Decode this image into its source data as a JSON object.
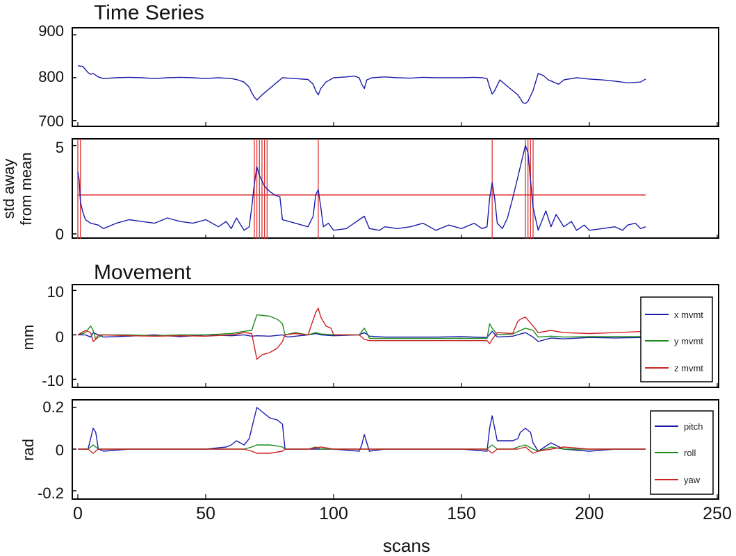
{
  "chart_data": [
    {
      "panel": "time-series",
      "type": "line",
      "title": "Time Series",
      "ylabel": "",
      "ylim": [
        690,
        910
      ],
      "yticks": [
        700,
        800,
        900
      ],
      "xlim": [
        0,
        250
      ],
      "series": [
        {
          "color": "#1a1aaa",
          "x": [
            0,
            2,
            4,
            5,
            6,
            8,
            10,
            15,
            20,
            25,
            30,
            35,
            40,
            45,
            50,
            55,
            60,
            62,
            65,
            67,
            68,
            69,
            70,
            72,
            74,
            76,
            78,
            80,
            85,
            90,
            92,
            93,
            94,
            95,
            97,
            100,
            105,
            108,
            110,
            111,
            112,
            113,
            115,
            120,
            125,
            130,
            135,
            140,
            145,
            150,
            155,
            158,
            160,
            161,
            162,
            163,
            165,
            168,
            170,
            172,
            173,
            174,
            175,
            176,
            178,
            180,
            182,
            184,
            186,
            188,
            190,
            195,
            200,
            205,
            210,
            215,
            220,
            222
          ],
          "y": [
            828,
            826,
            812,
            808,
            810,
            802,
            798,
            800,
            801,
            800,
            798,
            800,
            801,
            800,
            798,
            800,
            798,
            796,
            790,
            778,
            765,
            755,
            748,
            760,
            770,
            780,
            790,
            800,
            798,
            796,
            785,
            770,
            760,
            775,
            790,
            800,
            802,
            804,
            800,
            785,
            775,
            795,
            800,
            802,
            800,
            799,
            801,
            800,
            800,
            800,
            801,
            800,
            798,
            778,
            762,
            770,
            795,
            780,
            770,
            760,
            752,
            742,
            740,
            745,
            770,
            810,
            805,
            795,
            790,
            785,
            795,
            800,
            797,
            795,
            792,
            788,
            790,
            797
          ]
        }
      ]
    },
    {
      "panel": "std-away-from-mean",
      "type": "line",
      "title": "",
      "ylabel": "std away\nfrom mean",
      "ylim": [
        -0.2,
        5.3
      ],
      "yticks": [
        0,
        5
      ],
      "xlim": [
        0,
        250
      ],
      "threshold": 2.2,
      "highlight_scans": [
        0,
        1,
        69,
        70,
        71,
        72,
        73,
        74,
        94,
        162,
        175,
        176,
        177,
        178
      ],
      "series": [
        {
          "color": "#1a1aaa",
          "x": [
            0,
            0.5,
            1,
            2,
            3,
            5,
            8,
            10,
            15,
            20,
            25,
            30,
            35,
            40,
            45,
            50,
            55,
            58,
            60,
            62,
            65,
            67,
            68,
            69,
            70,
            71,
            72,
            73,
            75,
            77,
            79,
            80,
            85,
            90,
            92,
            93,
            94,
            95,
            96,
            98,
            100,
            105,
            110,
            112,
            114,
            118,
            120,
            125,
            130,
            135,
            140,
            145,
            150,
            155,
            158,
            160,
            161,
            162,
            163,
            164,
            166,
            168,
            170,
            172,
            174,
            175,
            176,
            177,
            178,
            180,
            183,
            185,
            187,
            190,
            193,
            195,
            198,
            200,
            205,
            210,
            213,
            215,
            218,
            220,
            222
          ],
          "y": [
            3.5,
            3.1,
            1.8,
            1.2,
            0.8,
            0.6,
            0.5,
            0.3,
            0.6,
            0.8,
            0.7,
            0.6,
            0.9,
            0.7,
            0.6,
            0.8,
            0.4,
            0.7,
            0.3,
            0.9,
            0.2,
            0.4,
            1.5,
            2.8,
            3.8,
            3.3,
            3.0,
            2.7,
            2.4,
            2.2,
            2.1,
            0.8,
            0.6,
            0.4,
            1.0,
            2.2,
            2.5,
            1.5,
            0.4,
            0.6,
            0.2,
            0.3,
            0.8,
            1.0,
            0.3,
            0.2,
            0.4,
            0.3,
            0.4,
            0.6,
            0.2,
            0.5,
            0.3,
            0.6,
            0.3,
            0.4,
            2.0,
            2.9,
            2.0,
            0.6,
            0.3,
            0.9,
            2.0,
            3.2,
            4.4,
            5.0,
            4.6,
            3.0,
            1.5,
            0.2,
            1.3,
            0.4,
            1.1,
            0.4,
            0.7,
            0.2,
            0.5,
            0.2,
            0.3,
            0.4,
            0.2,
            0.5,
            0.6,
            0.3,
            0.4
          ]
        }
      ]
    },
    {
      "panel": "movement-mm",
      "type": "line",
      "title": "Movement",
      "ylabel": "mm",
      "ylim": [
        -11.5,
        11
      ],
      "yticks": [
        -10,
        0,
        10
      ],
      "xlim": [
        0,
        250
      ],
      "legend": "right",
      "series": [
        {
          "name": "x mvmt",
          "color": "#1a1aaa",
          "x": [
            0,
            3,
            5,
            6,
            8,
            10,
            20,
            30,
            40,
            50,
            60,
            65,
            68,
            70,
            75,
            80,
            82,
            90,
            93,
            95,
            100,
            110,
            112,
            114,
            120,
            140,
            150,
            160,
            162,
            164,
            170,
            175,
            178,
            180,
            185,
            190,
            200,
            210,
            222
          ],
          "y": [
            0,
            0,
            -0.5,
            0.5,
            0,
            -0.5,
            -0.3,
            0,
            -0.4,
            0,
            -0.2,
            0,
            -0.3,
            -0.2,
            -0.3,
            0,
            -0.5,
            0,
            0.3,
            0,
            -0.2,
            0,
            0.5,
            -0.3,
            -0.5,
            -0.5,
            -0.4,
            -0.6,
            0.8,
            -0.5,
            -0.3,
            0.5,
            -0.5,
            -1.5,
            -0.7,
            -0.9,
            -0.6,
            -0.7,
            -0.6
          ]
        },
        {
          "name": "y mvmt",
          "color": "#1a8a1a",
          "x": [
            0,
            3,
            5,
            6,
            7,
            8,
            10,
            20,
            30,
            40,
            50,
            60,
            65,
            68,
            70,
            75,
            78,
            80,
            81,
            85,
            90,
            93,
            95,
            100,
            110,
            112,
            113,
            114,
            120,
            140,
            160,
            161,
            162,
            164,
            170,
            175,
            178,
            180,
            185,
            190,
            200,
            210,
            222
          ],
          "y": [
            0,
            0.5,
            2,
            1,
            -1,
            -0.5,
            0,
            0,
            -0.2,
            0,
            0,
            0.3,
            0.8,
            1,
            4.5,
            4.2,
            3.5,
            2.5,
            0,
            0.5,
            0,
            0.5,
            0.2,
            0,
            0,
            1.5,
            0.5,
            -0.8,
            -0.8,
            -0.8,
            -0.8,
            2.5,
            1.5,
            0,
            0.2,
            1.5,
            1,
            -0.5,
            -0.3,
            -0.5,
            -0.4,
            -0.4,
            -0.4
          ]
        },
        {
          "name": "z mvmt",
          "color": "#cc2222",
          "x": [
            0,
            3,
            5,
            6,
            7,
            8,
            10,
            20,
            30,
            40,
            50,
            60,
            65,
            68,
            70,
            72,
            75,
            78,
            80,
            81,
            85,
            90,
            93,
            94,
            95,
            97,
            99,
            100,
            110,
            112,
            114,
            120,
            140,
            160,
            161,
            162,
            164,
            170,
            172,
            173,
            175,
            178,
            180,
            185,
            190,
            200,
            210,
            222
          ],
          "y": [
            0,
            1,
            0.5,
            -1.5,
            -1,
            0,
            0,
            -0.2,
            -0.3,
            -0.2,
            -0.3,
            0,
            0.5,
            0.3,
            -5.5,
            -4.5,
            -4,
            -3,
            -1.5,
            0,
            0.3,
            0,
            5,
            6,
            4,
            2,
            1.5,
            0,
            0,
            -1,
            -1.3,
            -1.3,
            -1.3,
            -1.3,
            -2,
            -1,
            0.5,
            0.3,
            3,
            3.5,
            4,
            2,
            0.5,
            1,
            0.5,
            0.3,
            0.5,
            0.8
          ]
        }
      ]
    },
    {
      "panel": "movement-rad",
      "type": "line",
      "title": "",
      "ylabel": "rad",
      "xlabel": "scans",
      "ylim": [
        -0.23,
        0.23
      ],
      "yticks": [
        -0.2,
        0,
        0.2
      ],
      "xlim": [
        0,
        250
      ],
      "xticks": [
        0,
        50,
        100,
        150,
        200,
        250
      ],
      "legend": "right",
      "series": [
        {
          "name": "pitch",
          "color": "#1a1aaa",
          "x": [
            0,
            4,
            5,
            6,
            7,
            8,
            10,
            20,
            30,
            40,
            50,
            58,
            60,
            62,
            65,
            67,
            68,
            69,
            70,
            72,
            75,
            78,
            80,
            81,
            85,
            90,
            100,
            110,
            111,
            112,
            113,
            114,
            120,
            150,
            160,
            161,
            162,
            163,
            164,
            170,
            172,
            173,
            175,
            177,
            178,
            180,
            185,
            190,
            200,
            210,
            222
          ],
          "y": [
            0,
            0,
            0.05,
            0.1,
            0.08,
            0,
            -0.01,
            0,
            0,
            0,
            0,
            0.01,
            0.02,
            0.04,
            0.02,
            0.05,
            0.1,
            0.15,
            0.2,
            0.18,
            0.15,
            0.14,
            0.12,
            0,
            0,
            0,
            0,
            -0.01,
            0.02,
            0.07,
            0.03,
            -0.01,
            0,
            0,
            -0.01,
            0.1,
            0.16,
            0.1,
            0.04,
            0.04,
            0.05,
            0.08,
            0.1,
            0.08,
            0.03,
            -0.01,
            0.03,
            0,
            -0.01,
            0,
            0
          ]
        },
        {
          "name": "roll",
          "color": "#1a8a1a",
          "x": [
            0,
            4,
            5,
            6,
            7,
            8,
            10,
            20,
            30,
            40,
            50,
            60,
            65,
            68,
            70,
            75,
            78,
            80,
            81,
            85,
            90,
            93,
            95,
            100,
            110,
            120,
            150,
            160,
            161,
            162,
            164,
            170,
            172,
            175,
            178,
            180,
            185,
            190,
            200,
            210,
            222
          ],
          "y": [
            0,
            0,
            0.01,
            0.02,
            0.01,
            0,
            0,
            0,
            0,
            0,
            0,
            0,
            0,
            0.01,
            0.02,
            0.02,
            0.015,
            0.01,
            0,
            0,
            0,
            0.01,
            0,
            0,
            0,
            0,
            0,
            0,
            0.01,
            0.02,
            0,
            0,
            0.01,
            0.02,
            0,
            -0.01,
            0.01,
            0,
            0,
            0,
            0
          ]
        },
        {
          "name": "yaw",
          "color": "#cc2222",
          "x": [
            0,
            4,
            5,
            6,
            7,
            8,
            10,
            20,
            30,
            40,
            50,
            60,
            65,
            68,
            70,
            75,
            80,
            81,
            85,
            90,
            95,
            100,
            110,
            120,
            150,
            160,
            161,
            162,
            164,
            170,
            172,
            175,
            178,
            180,
            185,
            190,
            200,
            210,
            222
          ],
          "y": [
            0,
            0,
            -0.01,
            -0.02,
            -0.01,
            0,
            0,
            0,
            0,
            0,
            0,
            0,
            0,
            -0.01,
            -0.02,
            -0.02,
            -0.01,
            0,
            0,
            0,
            0.01,
            0,
            0,
            0,
            0,
            0,
            -0.01,
            -0.02,
            0,
            0,
            0,
            0.01,
            -0.02,
            -0.01,
            0,
            0.01,
            0,
            0,
            0
          ]
        }
      ]
    }
  ],
  "axis": {
    "shared_xlabel": "scans",
    "xtick_labels": [
      "0",
      "50",
      "100",
      "150",
      "200",
      "250"
    ]
  },
  "titles": {
    "time_series": "Time Series",
    "movement": "Movement"
  },
  "ylabels": {
    "std_line1": "std away",
    "std_line2": "from mean",
    "mm": "mm",
    "rad": "rad"
  },
  "ytick_labels": {
    "ts": [
      "900",
      "800",
      "700"
    ],
    "std": [
      "5",
      "0"
    ],
    "mm": [
      "10",
      "0",
      "-10"
    ],
    "rad": [
      "0.2",
      "0",
      "-0.2"
    ]
  },
  "legends": {
    "mm": [
      "x mvmt",
      "y mvmt",
      "z mvmt"
    ],
    "rad": [
      "pitch",
      "roll",
      "yaw"
    ]
  },
  "colors": {
    "blue": "#1a1aaa",
    "green": "#1a8a1a",
    "red": "#cc2222",
    "threshold": "#dd3333"
  }
}
